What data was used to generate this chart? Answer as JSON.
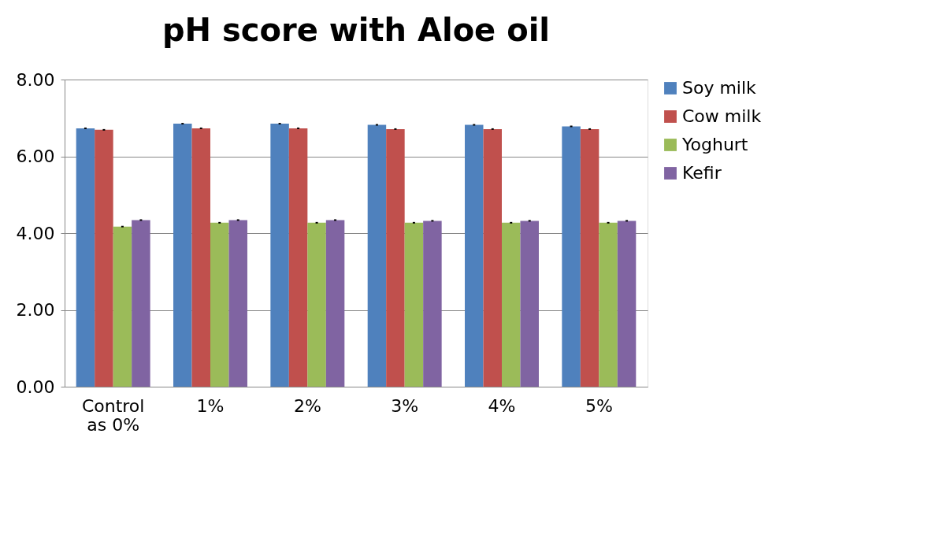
{
  "chart_data": {
    "type": "bar",
    "title": "pH score with Aloe oil",
    "categories": [
      "Control\nas 0%",
      "1%",
      "2%",
      "3%",
      "4%",
      "5%"
    ],
    "series": [
      {
        "name": "Soy milk",
        "color": "#4f81bd",
        "values": [
          6.73,
          6.85,
          6.85,
          6.82,
          6.82,
          6.78
        ],
        "errors": [
          0.02,
          0.02,
          0.02,
          0.02,
          0.02,
          0.02
        ]
      },
      {
        "name": "Cow milk",
        "color": "#c0504d",
        "values": [
          6.69,
          6.73,
          6.73,
          6.71,
          6.71,
          6.71
        ],
        "errors": [
          0.02,
          0.02,
          0.02,
          0.02,
          0.02,
          0.02
        ]
      },
      {
        "name": "Yoghurt",
        "color": "#9bbb59",
        "values": [
          4.17,
          4.27,
          4.27,
          4.27,
          4.27,
          4.27
        ],
        "errors": [
          0.02,
          0.02,
          0.02,
          0.02,
          0.02,
          0.02
        ]
      },
      {
        "name": "Kefir",
        "color": "#8064a2",
        "values": [
          4.34,
          4.34,
          4.34,
          4.32,
          4.32,
          4.32
        ],
        "errors": [
          0.02,
          0.02,
          0.02,
          0.02,
          0.02,
          0.02
        ]
      }
    ],
    "ylim": [
      0,
      8
    ],
    "yticks": [
      {
        "value": 0,
        "label": "0.00"
      },
      {
        "value": 2,
        "label": "2.00"
      },
      {
        "value": 4,
        "label": "4.00"
      },
      {
        "value": 6,
        "label": "6.00"
      },
      {
        "value": 8,
        "label": "8.00"
      }
    ],
    "grid": "y",
    "legend": "right"
  }
}
